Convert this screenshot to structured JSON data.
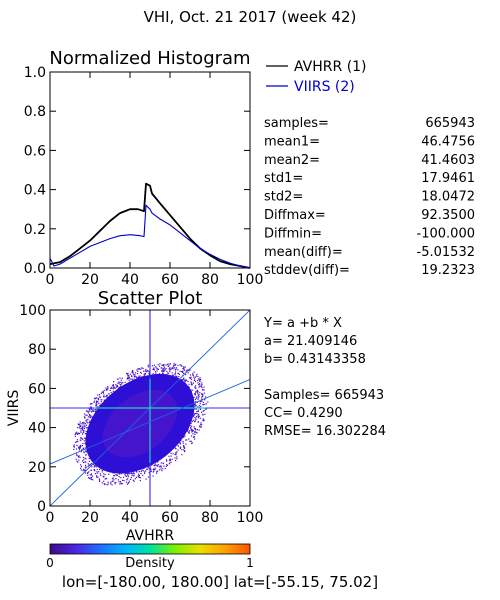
{
  "header": {
    "title": "VHI,  Oct. 21 2017 (week 42)"
  },
  "chart_data": [
    {
      "type": "line",
      "title": "Normalized Histogram",
      "xlim": [
        0,
        100
      ],
      "ylim": [
        0,
        1.0
      ],
      "xticks": [
        "0",
        "20",
        "40",
        "60",
        "80",
        "100"
      ],
      "yticks": [
        "0.0",
        "0.2",
        "0.4",
        "0.6",
        "0.8",
        "1.0"
      ],
      "legend_position": "right",
      "series": [
        {
          "name": "AVHRR (1)",
          "color": "#000000",
          "points": [
            [
              0,
              0.02
            ],
            [
              5,
              0.03
            ],
            [
              10,
              0.06
            ],
            [
              15,
              0.1
            ],
            [
              20,
              0.14
            ],
            [
              25,
              0.19
            ],
            [
              30,
              0.24
            ],
            [
              35,
              0.28
            ],
            [
              40,
              0.3
            ],
            [
              44,
              0.3
            ],
            [
              47,
              0.29
            ],
            [
              48,
              0.43
            ],
            [
              50,
              0.42
            ],
            [
              51,
              0.38
            ],
            [
              55,
              0.33
            ],
            [
              60,
              0.27
            ],
            [
              65,
              0.21
            ],
            [
              70,
              0.15
            ],
            [
              75,
              0.1
            ],
            [
              80,
              0.065
            ],
            [
              85,
              0.035
            ],
            [
              90,
              0.02
            ],
            [
              95,
              0.01
            ],
            [
              100,
              0.0
            ]
          ]
        },
        {
          "name": "VIIRS (2)",
          "color": "#0000cc",
          "points": [
            [
              0,
              0.05
            ],
            [
              2,
              0.01
            ],
            [
              5,
              0.02
            ],
            [
              10,
              0.05
            ],
            [
              15,
              0.08
            ],
            [
              20,
              0.11
            ],
            [
              25,
              0.13
            ],
            [
              30,
              0.15
            ],
            [
              35,
              0.165
            ],
            [
              40,
              0.17
            ],
            [
              45,
              0.165
            ],
            [
              47,
              0.16
            ],
            [
              48,
              0.32
            ],
            [
              50,
              0.3
            ],
            [
              51,
              0.28
            ],
            [
              55,
              0.25
            ],
            [
              60,
              0.22
            ],
            [
              65,
              0.18
            ],
            [
              70,
              0.14
            ],
            [
              75,
              0.1
            ],
            [
              80,
              0.07
            ],
            [
              85,
              0.045
            ],
            [
              90,
              0.025
            ],
            [
              95,
              0.01
            ],
            [
              100,
              0.0
            ]
          ]
        }
      ]
    },
    {
      "type": "scatter",
      "title": "Scatter Plot",
      "xlabel": "AVHRR",
      "ylabel": "VIIRS",
      "xlim": [
        0,
        100
      ],
      "ylim": [
        0,
        100
      ],
      "xticks": [
        "0",
        "20",
        "40",
        "60",
        "80",
        "100"
      ],
      "yticks": [
        "0",
        "20",
        "40",
        "60",
        "80",
        "100"
      ],
      "fit": {
        "a": 21.409146,
        "b": 0.43143358
      },
      "lines": [
        {
          "type": "identity"
        },
        {
          "type": "vertical",
          "x": 50
        },
        {
          "type": "horizontal",
          "y": 50
        }
      ],
      "density_cloud": {
        "center": [
          45,
          42
        ],
        "radii": [
          30,
          27
        ],
        "tilt_degrees": 38,
        "colors": [
          "#2d0fd6",
          "#5a1cc8",
          "#0e78e8"
        ]
      },
      "colorbar": {
        "label": "Density",
        "min": "0",
        "max": "1",
        "colors": [
          "#3b0b8c",
          "#4e22e0",
          "#1f6fff",
          "#00b4ff",
          "#00e0a0",
          "#7cf000",
          "#e8e000",
          "#ffa000",
          "#ff5500"
        ]
      }
    }
  ],
  "stats": {
    "rows": [
      {
        "label": "samples=",
        "value": "665943"
      },
      {
        "label": "mean1=",
        "value": "46.4756"
      },
      {
        "label": "mean2=",
        "value": "41.4603"
      },
      {
        "label": "std1=",
        "value": "17.9461"
      },
      {
        "label": "std2=",
        "value": "18.0472"
      },
      {
        "label": "Diffmax=",
        "value": "92.3500"
      },
      {
        "label": "Diffmin=",
        "value": "-100.000"
      },
      {
        "label": "mean(diff)=",
        "value": "-5.01532"
      },
      {
        "label": "stddev(diff)=",
        "value": "19.2323"
      }
    ]
  },
  "fit_info": {
    "equation": "Y= a +b * X",
    "a_text": "a= 21.409146",
    "b_text": "b= 0.43143358",
    "samples_text": "Samples= 665943",
    "cc_text": "CC=  0.4290",
    "rmse_text": "RMSE= 16.302284"
  },
  "footer": {
    "coords": "lon=[-180.00, 180.00] lat=[-55.15, 75.02]"
  }
}
